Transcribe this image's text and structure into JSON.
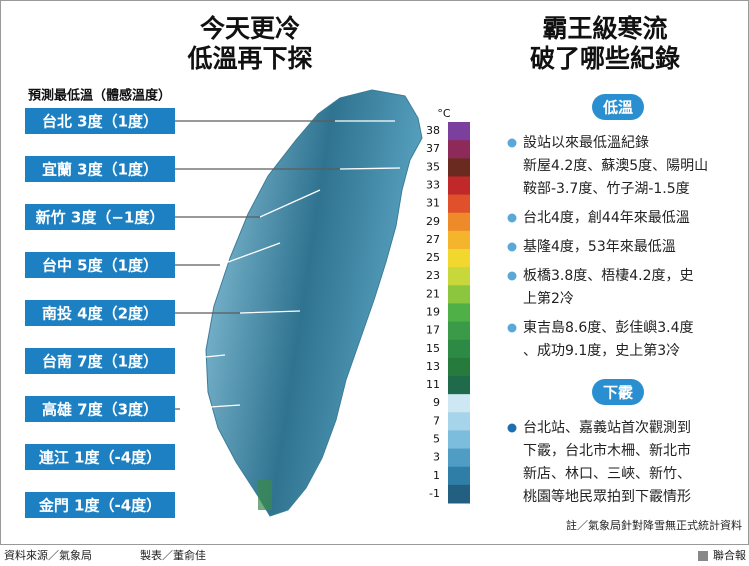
{
  "left": {
    "title": [
      "今天更冷",
      "低溫再下探"
    ],
    "legend_label": "預測最低溫（體感溫度）",
    "cities": [
      "台北 3度（1度）",
      "宜蘭 3度（1度）",
      "新竹 3度（−1度）",
      "台中 5度（1度）",
      "南投 4度（2度）",
      "台南 7度（1度）",
      "高雄 7度（3度）",
      "連江 1度（-4度）",
      "金門 1度（-4度）"
    ]
  },
  "scale": {
    "unit": "°C",
    "ticks": [
      38,
      37,
      35,
      33,
      31,
      29,
      27,
      25,
      23,
      21,
      19,
      17,
      15,
      13,
      11,
      9,
      7,
      5,
      3,
      1,
      -1
    ],
    "colors": [
      "#7b3f9e",
      "#8e2a5a",
      "#6b2a20",
      "#c0282a",
      "#e0502a",
      "#ef8a2a",
      "#f4b42c",
      "#f2d82e",
      "#c8d83a",
      "#8cc63f",
      "#4fb048",
      "#3a9a48",
      "#2d8a44",
      "#267a3c",
      "#1f6a4a",
      "#cde8f2",
      "#a6d4ea",
      "#7cbcdc",
      "#4f9cc4",
      "#2f7ea8",
      "#225f80"
    ]
  },
  "right": {
    "title": [
      "霸王級寒流",
      "破了哪些紀錄"
    ],
    "sections": [
      {
        "heading": "低溫",
        "items": [
          [
            "設站以來最低溫紀錄",
            "新屋4.2度、蘇澳5度、陽明山",
            "鞍部-3.7度、竹子湖-1.5度"
          ],
          [
            "台北4度，創44年來最低溫"
          ],
          [
            "基隆4度，53年來最低溫"
          ],
          [
            "板橋3.8度、梧棲4.2度，史",
            "上第2冷"
          ],
          [
            "東吉島8.6度、彭佳嶼3.4度",
            "、成功9.1度，史上第3冷"
          ]
        ]
      },
      {
        "heading": "下霰",
        "items": [
          [
            "台北站、嘉義站首次觀測到",
            "下霰，台北市木柵、新北市",
            "新店、林口、三峽、新竹、",
            "桃園等地民眾拍到下霰情形"
          ]
        ]
      }
    ],
    "note": "註／氣象局針對降雪無正式統計資料"
  },
  "footer": {
    "source": "資料來源／氣象局",
    "credit": "製表／董俞佳",
    "publisher": "聯合報"
  }
}
